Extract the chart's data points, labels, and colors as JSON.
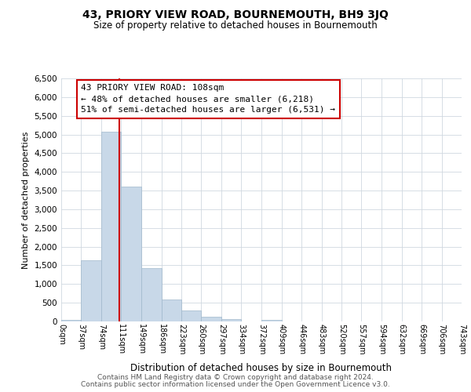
{
  "title": "43, PRIORY VIEW ROAD, BOURNEMOUTH, BH9 3JQ",
  "subtitle": "Size of property relative to detached houses in Bournemouth",
  "xlabel": "Distribution of detached houses by size in Bournemouth",
  "ylabel": "Number of detached properties",
  "bin_edges": [
    0,
    37,
    74,
    111,
    149,
    186,
    223,
    260,
    297,
    334,
    372,
    409,
    446,
    483,
    520,
    557,
    594,
    632,
    669,
    706,
    743
  ],
  "bin_counts": [
    50,
    1640,
    5080,
    3600,
    1420,
    580,
    290,
    130,
    60,
    10,
    40,
    0,
    0,
    0,
    0,
    0,
    0,
    0,
    0,
    0
  ],
  "bar_color": "#c8d8e8",
  "bar_edge_color": "#a0b8cc",
  "property_line_x": 108,
  "property_line_color": "#cc0000",
  "annotation_box_color": "#cc0000",
  "annotation_text_line1": "43 PRIORY VIEW ROAD: 108sqm",
  "annotation_text_line2": "← 48% of detached houses are smaller (6,218)",
  "annotation_text_line3": "51% of semi-detached houses are larger (6,531) →",
  "ylim": [
    0,
    6500
  ],
  "yticks": [
    0,
    500,
    1000,
    1500,
    2000,
    2500,
    3000,
    3500,
    4000,
    4500,
    5000,
    5500,
    6000,
    6500
  ],
  "tick_labels": [
    "0sqm",
    "37sqm",
    "74sqm",
    "111sqm",
    "149sqm",
    "186sqm",
    "223sqm",
    "260sqm",
    "297sqm",
    "334sqm",
    "372sqm",
    "409sqm",
    "446sqm",
    "483sqm",
    "520sqm",
    "557sqm",
    "594sqm",
    "632sqm",
    "669sqm",
    "706sqm",
    "743sqm"
  ],
  "footer_line1": "Contains HM Land Registry data © Crown copyright and database right 2024.",
  "footer_line2": "Contains public sector information licensed under the Open Government Licence v3.0.",
  "bg_color": "#ffffff",
  "grid_color": "#d0d8e0"
}
